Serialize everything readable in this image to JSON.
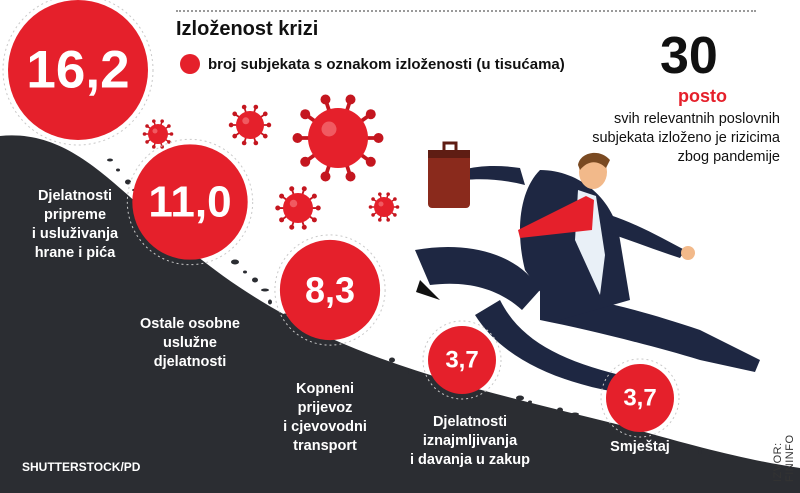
{
  "header": {
    "title": "Izloženost krizi",
    "legend_label": "broj subjekata s oznakom izloženosti (u tisućama)"
  },
  "highlight": {
    "value": "30",
    "unit": "posto",
    "note": "svih relevantnih poslovnih subjekata izloženo je rizicima zbog pandemije"
  },
  "credits": {
    "photo": "SHUTTERSTOCK/PD",
    "source": "IZVOR: FININFO"
  },
  "chart_data": {
    "type": "bubble",
    "categories": [
      "Djelatnosti pripreme i usluživanja hrane i pića",
      "Ostale osobne uslužne djelatnosti",
      "Kopneni prijevoz i cjevovodni transport",
      "Djelatnosti iznajmljivanja i davanja u zakup",
      "Smještaj"
    ],
    "category_lines": [
      [
        "Djelatnosti",
        "pripreme",
        "i usluživanja",
        "hrane i pića"
      ],
      [
        "Ostale osobne",
        "uslužne",
        "djelatnosti"
      ],
      [
        "Kopneni",
        "prijevoz",
        "i cjevovodni",
        "transport"
      ],
      [
        "Djelatnosti",
        "iznajmljivanja",
        "i davanja u zakup"
      ],
      [
        "Smještaj"
      ]
    ],
    "values": [
      16.2,
      11.0,
      8.3,
      3.7,
      3.7
    ],
    "value_labels": [
      "16,2",
      "11,0",
      "8,3",
      "3,7",
      "3,7"
    ],
    "unit": "tisuće",
    "colors": {
      "bubble": "#e5202b",
      "text": "#ffffff",
      "ground": "#2b2d32",
      "legend": "#e5202b"
    }
  }
}
